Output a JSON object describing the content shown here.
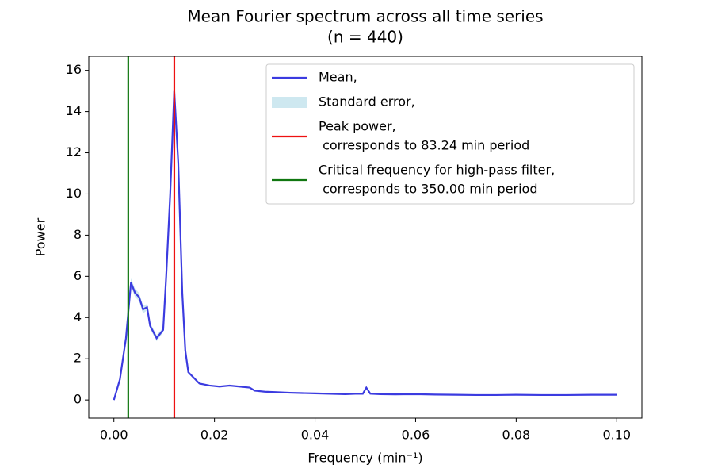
{
  "chart_data": {
    "type": "line",
    "title": [
      "Mean Fourier spectrum across all time series",
      "(n = 440)"
    ],
    "xlabel": "Frequency (min⁻¹)",
    "ylabel": "Power",
    "x": [
      0,
      0.0012,
      0.0024,
      0.0034,
      0.0042,
      0.005,
      0.0058,
      0.0066,
      0.0072,
      0.0085,
      0.0098,
      0.0104,
      0.0112,
      0.012,
      0.0128,
      0.0136,
      0.0142,
      0.0148,
      0.0158,
      0.017,
      0.019,
      0.021,
      0.023,
      0.025,
      0.027,
      0.028,
      0.03,
      0.032,
      0.035,
      0.038,
      0.04,
      0.043,
      0.046,
      0.048,
      0.0495,
      0.0502,
      0.051,
      0.053,
      0.056,
      0.06,
      0.064,
      0.068,
      0.072,
      0.076,
      0.08,
      0.085,
      0.09,
      0.095,
      0.1
    ],
    "series": [
      {
        "name": [
          "Mean,"
        ],
        "color": "#3b3be0",
        "values": [
          0,
          1.0,
          3.0,
          5.7,
          5.2,
          5.0,
          4.4,
          4.5,
          3.6,
          3.0,
          3.4,
          6.0,
          10.0,
          15.0,
          11.5,
          5.2,
          2.4,
          1.35,
          1.1,
          0.8,
          0.7,
          0.65,
          0.7,
          0.65,
          0.6,
          0.45,
          0.4,
          0.38,
          0.35,
          0.33,
          0.32,
          0.3,
          0.28,
          0.3,
          0.3,
          0.6,
          0.3,
          0.28,
          0.27,
          0.28,
          0.26,
          0.25,
          0.24,
          0.24,
          0.25,
          0.24,
          0.24,
          0.25,
          0.25
        ]
      },
      {
        "name": [
          "Standard error,"
        ],
        "color": "#add8e6",
        "error": [
          0.02,
          0.05,
          0.1,
          0.2,
          0.2,
          0.2,
          0.2,
          0.15,
          0.15,
          0.15,
          0.12,
          0.2,
          0.25,
          0.3,
          0.25,
          0.15,
          0.1,
          0.06,
          0.05,
          0.04,
          0.02,
          0.02,
          0.02,
          0.02,
          0.02,
          0.02,
          0.02,
          0.02,
          0.02,
          0.02,
          0.02,
          0.02,
          0.02,
          0.02,
          0.02,
          0.02,
          0.02,
          0.02,
          0.02,
          0.02,
          0.02,
          0.02,
          0.02,
          0.02,
          0.02,
          0.02,
          0.02,
          0.02,
          0.02
        ]
      }
    ],
    "vlines": [
      {
        "name": [
          "Peak power,",
          " corresponds to 83.24 min period"
        ],
        "color": "#ee1111",
        "x": 0.012013
      },
      {
        "name": [
          "Critical frequency for high-pass filter,",
          " corresponds to 350.00 min period"
        ],
        "color": "#117711",
        "x": 0.002857
      }
    ],
    "xlim": [
      -0.005,
      0.105
    ],
    "ylim": [
      -0.88,
      16.68
    ],
    "xticks": [
      {
        "value": 0,
        "label": "0.00"
      },
      {
        "value": 0.02,
        "label": "0.02"
      },
      {
        "value": 0.04,
        "label": "0.04"
      },
      {
        "value": 0.06,
        "label": "0.06"
      },
      {
        "value": 0.08,
        "label": "0.08"
      },
      {
        "value": 0.1,
        "label": "0.10"
      }
    ],
    "yticks": [
      0,
      2,
      4,
      6,
      8,
      10,
      12,
      14,
      16
    ],
    "legend": "upper right"
  }
}
